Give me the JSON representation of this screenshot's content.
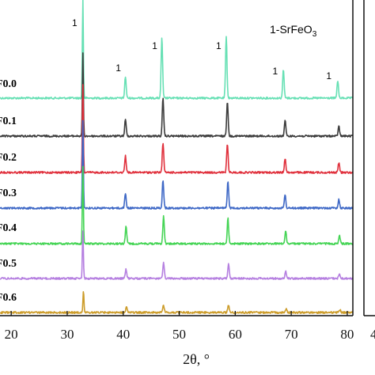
{
  "chart_data": {
    "type": "line",
    "xlabel": "2θ, °",
    "xlim": [
      18,
      81
    ],
    "x_ticks": [
      20,
      30,
      40,
      50,
      60,
      70,
      80
    ],
    "x_tick_labels": [
      "20",
      "30",
      "40",
      "50",
      "60",
      "70",
      "80"
    ],
    "right_axis_partial_tick_label": "4",
    "legend_label": {
      "prefix": "1-SrFeO",
      "subscript": "3"
    },
    "peak_marker_label": "1",
    "peak_markers": [
      {
        "x": 32.6,
        "label": "1"
      },
      {
        "x": 40.4,
        "label": "1"
      },
      {
        "x": 46.9,
        "label": "1"
      },
      {
        "x": 58.3,
        "label": "1"
      },
      {
        "x": 68.4,
        "label": "1"
      },
      {
        "x": 78.0,
        "label": "1"
      }
    ],
    "series": [
      {
        "name": "F0.0",
        "color": "#66e0b4",
        "peaks": [
          [
            32.8,
            1.0
          ],
          [
            40.4,
            0.22
          ],
          [
            46.9,
            0.62
          ],
          [
            58.4,
            0.62
          ],
          [
            68.6,
            0.29
          ],
          [
            78.3,
            0.18
          ]
        ]
      },
      {
        "name": "F0.1",
        "color": "#3c3c3c",
        "peaks": [
          [
            32.8,
            1.0
          ],
          [
            40.4,
            0.2
          ],
          [
            47.1,
            0.45
          ],
          [
            58.6,
            0.42
          ],
          [
            68.9,
            0.19
          ],
          [
            78.5,
            0.12
          ]
        ]
      },
      {
        "name": "F0.2",
        "color": "#e0303c",
        "peaks": [
          [
            32.8,
            1.0
          ],
          [
            40.4,
            0.19
          ],
          [
            47.1,
            0.34
          ],
          [
            58.6,
            0.32
          ],
          [
            68.9,
            0.16
          ],
          [
            78.5,
            0.11
          ]
        ]
      },
      {
        "name": "F0.3",
        "color": "#3e68c6",
        "peaks": [
          [
            32.8,
            1.0
          ],
          [
            40.4,
            0.17
          ],
          [
            47.1,
            0.32
          ],
          [
            58.7,
            0.3
          ],
          [
            68.9,
            0.15
          ],
          [
            78.5,
            0.1
          ]
        ]
      },
      {
        "name": "F0.4",
        "color": "#44d454",
        "peaks": [
          [
            32.8,
            1.0
          ],
          [
            40.5,
            0.22
          ],
          [
            47.2,
            0.36
          ],
          [
            58.7,
            0.33
          ],
          [
            69.0,
            0.17
          ],
          [
            78.6,
            0.11
          ]
        ]
      },
      {
        "name": "F0.5",
        "color": "#b57fe0",
        "peaks": [
          [
            32.8,
            1.0
          ],
          [
            40.5,
            0.2
          ],
          [
            47.2,
            0.32
          ],
          [
            58.8,
            0.3
          ],
          [
            69.0,
            0.15
          ],
          [
            78.6,
            0.1
          ]
        ]
      },
      {
        "name": "F0.6",
        "color": "#cc9c2a",
        "peaks": [
          [
            32.9,
            1.0
          ],
          [
            40.6,
            0.28
          ],
          [
            47.2,
            0.34
          ],
          [
            58.8,
            0.36
          ],
          [
            69.1,
            0.18
          ],
          [
            78.7,
            0.12
          ]
        ]
      }
    ]
  }
}
